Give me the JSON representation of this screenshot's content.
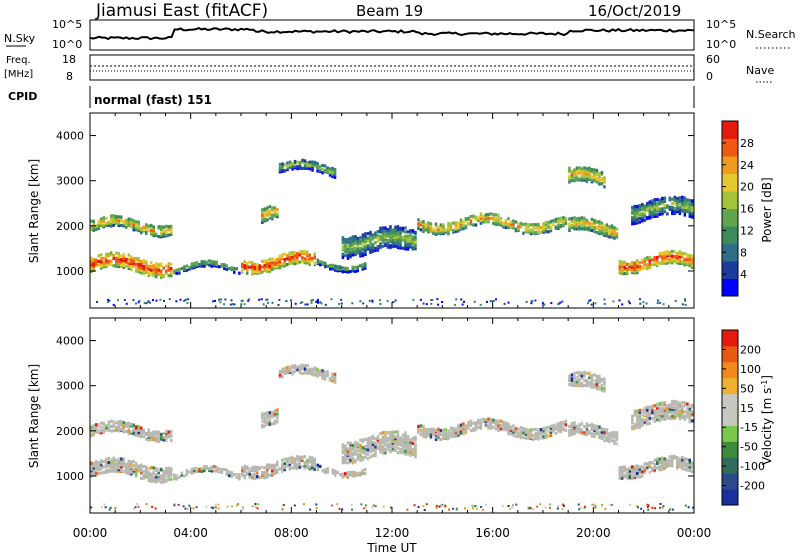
{
  "header": {
    "station": "Jiamusi East (fitACF)",
    "beam": "Beam 19",
    "date": "16/Oct/2019"
  },
  "panels": {
    "nsky_label": "N.Sky",
    "nsky_ticks": [
      "10^5",
      "10^0"
    ],
    "nsearch_label": "N.Search",
    "freq_label_1": "Freq.",
    "freq_label_2": "[MHz]",
    "freq_ticks": [
      "18",
      "8"
    ],
    "nave_ticks": [
      "60",
      "0"
    ],
    "nave_label": "Nave",
    "cpid_label": "CPID",
    "cpid_value": "normal (fast) 151"
  },
  "colors": {
    "power_scale": [
      "#0000ff",
      "#1a3d9c",
      "#2e6e8a",
      "#3c8c5a",
      "#5fa64e",
      "#a3c43a",
      "#e6c82e",
      "#f09a1e",
      "#ee5a14",
      "#e41a0e"
    ],
    "velocity_scale": [
      "#1b2ea0",
      "#2a4a8a",
      "#2f6a5a",
      "#3c8c3c",
      "#7cc84a",
      "#c8c8c0",
      "#c8c8c0",
      "#f0b030",
      "#f08a1a",
      "#e85a14",
      "#e41a0e"
    ],
    "ground_scatter": "#b8b8b0"
  },
  "chart_data": [
    {
      "type": "heatmap",
      "name": "power",
      "ylabel": "Slant Range [km]",
      "xlabel": "Time UT",
      "xlim": [
        "00:00",
        "24:00"
      ],
      "ylim": [
        180,
        4500
      ],
      "x_ticks": [
        "00:00",
        "04:00",
        "08:00",
        "12:00",
        "16:00",
        "20:00",
        "00:00"
      ],
      "y_ticks": [
        1000,
        2000,
        3000,
        4000
      ],
      "colorbar_label": "Power [dB]",
      "colorbar_ticks": [
        "4",
        "8",
        "12",
        "16",
        "20",
        "24",
        "28"
      ],
      "colorbar_range": [
        0,
        30
      ]
    },
    {
      "type": "heatmap",
      "name": "velocity",
      "ylabel": "Slant Range [km]",
      "xlabel": "Time UT",
      "xlim": [
        "00:00",
        "24:00"
      ],
      "ylim": [
        180,
        4500
      ],
      "x_ticks": [
        "00:00",
        "04:00",
        "08:00",
        "12:00",
        "16:00",
        "20:00",
        "00:00"
      ],
      "y_ticks": [
        1000,
        2000,
        3000,
        4000
      ],
      "colorbar_label": "Velocity [m s^-1]",
      "colorbar_ticks": [
        "200",
        "100",
        "50",
        "15",
        "-15",
        "-50",
        "-100",
        "-200"
      ]
    }
  ]
}
